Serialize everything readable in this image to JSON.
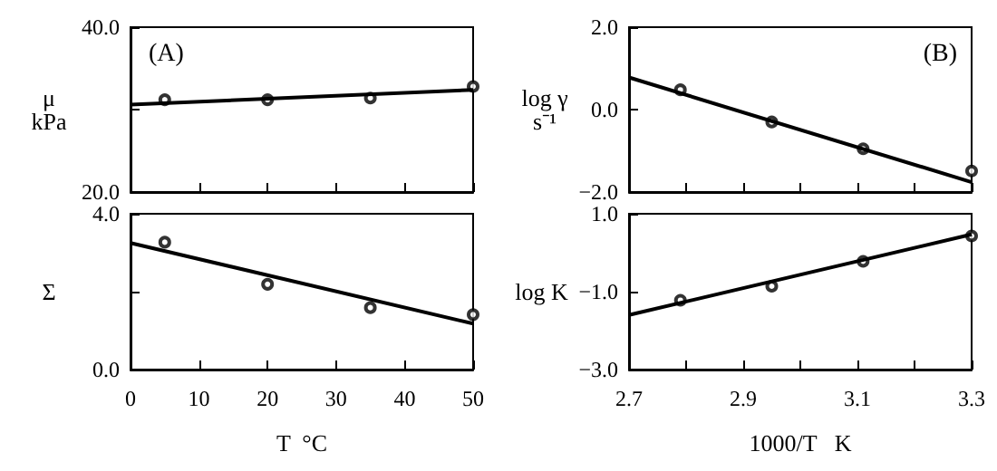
{
  "chart_data": [
    {
      "type": "scatter",
      "ylabel": "μ\nkPa",
      "annotations": [
        "(A)"
      ],
      "tick_labels": "y",
      "xlim": [
        0,
        50
      ],
      "xticks": [
        0,
        10,
        20,
        30,
        40,
        50
      ],
      "ylim": [
        20,
        40
      ],
      "yticks": [
        {
          "value": 20,
          "label": "20.0"
        },
        {
          "value": 30,
          "label": null
        },
        {
          "value": 40,
          "label": "40.0"
        }
      ],
      "x": [
        5,
        20,
        35,
        50
      ],
      "series": [
        {
          "color": "#000000",
          "marker": "circle",
          "values": [
            31.2,
            31.2,
            31.4,
            32.8
          ]
        },
        {
          "type": "line",
          "marker": "none",
          "color": "#000000",
          "x": [
            0,
            50
          ],
          "values": [
            30.6,
            32.4
          ]
        }
      ]
    },
    {
      "type": "scatter",
      "ylabel": "Σ",
      "xlabel": "T  °C",
      "xlim": [
        0,
        50
      ],
      "xticks": [
        0,
        10,
        20,
        30,
        40,
        50
      ],
      "ylim": [
        0,
        4
      ],
      "yticks": [
        {
          "value": 0,
          "label": "0.0"
        },
        {
          "value": 2,
          "label": null
        },
        {
          "value": 4,
          "label": "4.0"
        }
      ],
      "x": [
        5,
        20,
        35,
        50
      ],
      "series": [
        {
          "color": "#000000",
          "marker": "circle",
          "values": [
            3.27,
            2.19,
            1.59,
            1.41
          ]
        },
        {
          "type": "line",
          "marker": "none",
          "color": "#000000",
          "x": [
            0,
            50
          ],
          "values": [
            3.25,
            1.18
          ]
        }
      ]
    },
    {
      "type": "scatter",
      "ylabel": "log γ\ns⁻¹",
      "annotations": [
        "(B)"
      ],
      "tick_labels": "y",
      "xlim": [
        2.7,
        3.3
      ],
      "xticks": [
        2.7,
        2.8,
        2.9,
        3.0,
        3.1,
        3.2,
        3.3
      ],
      "ylim": [
        -2,
        2
      ],
      "yticks": [
        {
          "value": -2,
          "label": "−2.0"
        },
        {
          "value": 0,
          "label": "0.0"
        },
        {
          "value": 2,
          "label": "2.0"
        }
      ],
      "x": [
        2.79,
        2.95,
        3.11,
        3.3
      ],
      "series": [
        {
          "color": "#000000",
          "marker": "circle",
          "values": [
            0.48,
            -0.3,
            -0.95,
            -1.49
          ]
        },
        {
          "type": "line",
          "marker": "none",
          "color": "#000000",
          "x": [
            2.7,
            3.3
          ],
          "values": [
            0.78,
            -1.76
          ]
        }
      ]
    },
    {
      "type": "scatter",
      "ylabel": "log K",
      "xlabel": "1000/T   K",
      "xlim": [
        2.7,
        3.3
      ],
      "xticks": [
        2.7,
        {
          "value": 2.8,
          "label": null
        },
        2.9,
        {
          "value": 3.0,
          "label": null
        },
        3.1,
        {
          "value": 3.2,
          "label": null
        },
        3.3
      ],
      "ylim": [
        -3,
        1
      ],
      "yticks": [
        {
          "value": -3,
          "label": "−3.0"
        },
        {
          "value": -1,
          "label": "−1.0"
        },
        {
          "value": 1,
          "label": "1.0"
        }
      ],
      "x": [
        2.79,
        2.95,
        3.11,
        3.3
      ],
      "series": [
        {
          "color": "#000000",
          "marker": "circle",
          "values": [
            -1.22,
            -0.86,
            -0.22,
            0.43
          ]
        },
        {
          "type": "line",
          "marker": "none",
          "color": "#000000",
          "x": [
            2.7,
            3.3
          ],
          "values": [
            -1.6,
            0.47
          ]
        }
      ]
    }
  ]
}
